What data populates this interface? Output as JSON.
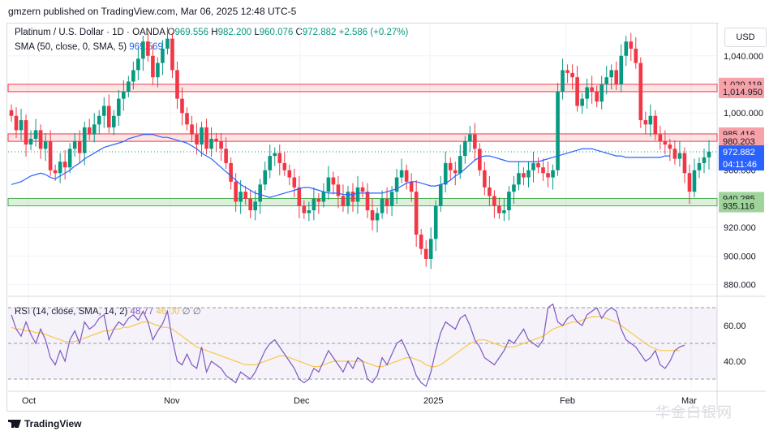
{
  "header": {
    "published": "gmzern published on TradingView.com, Mar 06, 2025 12:48 UTC-5"
  },
  "legend": {
    "symbol": "Platinum / U.S. Dollar · 1D · OANDA",
    "open_label": "O",
    "open": "969.556",
    "high_label": "H",
    "high": "982.200",
    "low_label": "L",
    "low": "960.076",
    "close_label": "C",
    "close": "972.882",
    "change": "+2.586 (+0.27%)",
    "sma_label": "SMA (50, close, 0, SMA, 5)",
    "sma_value": "969.569",
    "rsi_label": "RSI (14, close, SMA, 14, 2)",
    "rsi_value": "48.77",
    "rsi_sma_value": "46.00",
    "rsi_extra1": "∅",
    "rsi_extra2": "∅"
  },
  "currency_button": "USD",
  "footer": {
    "brand": "TradingView",
    "watermark": "华金白银网"
  },
  "colors": {
    "up": "#089981",
    "down": "#f23645",
    "sma": "#2962ff",
    "rsi": "#7e57c2",
    "rsi_sma": "#f7c948",
    "resistance_zone": "#f8b4b8",
    "support_zone": "#9fd49a"
  },
  "chart_data": [
    {
      "type": "candlestick",
      "title": "Platinum / U.S. Dollar · 1D · OANDA",
      "x_tick_labels": [
        "Oct",
        "Nov",
        "Dec",
        "2025",
        "Feb",
        "Mar"
      ],
      "y_tick_labels": [
        "880.000",
        "900.000",
        "920.000",
        "960.000",
        "1,000.000",
        "1,040.000"
      ],
      "ylim": [
        873,
        1062
      ],
      "grid": true,
      "price_tags": [
        {
          "value": 1020.119,
          "label": "1,020.119",
          "color": "#f7a1a8"
        },
        {
          "value": 1014.95,
          "label": "1,014.950",
          "color": "#f7a1a8"
        },
        {
          "value": 985.416,
          "label": "985.416",
          "color": "#f7a1a8"
        },
        {
          "value": 980.203,
          "label": "980.203",
          "color": "#f7a1a8"
        },
        {
          "value": 972.882,
          "label": "972.882",
          "color": "#2962ff"
        },
        {
          "value": 940.285,
          "label": "940.285",
          "color": "#9fd49a"
        },
        {
          "value": 935.116,
          "label": "935.116",
          "color": "#9fd49a"
        }
      ],
      "countdown_label": "04:11:46",
      "zones": [
        {
          "from": 1014.95,
          "to": 1020.119,
          "color": "#f8b4b8"
        },
        {
          "from": 980.203,
          "to": 985.416,
          "color": "#f8b4b8"
        },
        {
          "from": 935.116,
          "to": 940.285,
          "color": "#9fd49a"
        }
      ],
      "closes": [
        998,
        988,
        995,
        978,
        982,
        988,
        975,
        980,
        960,
        958,
        966,
        962,
        975,
        980,
        972,
        990,
        985,
        992,
        998,
        1005,
        990,
        998,
        1010,
        1015,
        1022,
        1030,
        1038,
        1050,
        1040,
        1025,
        1035,
        1045,
        1052,
        1030,
        1010,
        1000,
        992,
        985,
        978,
        990,
        975,
        982,
        980,
        975,
        965,
        952,
        938,
        945,
        940,
        932,
        938,
        950,
        960,
        970,
        972,
        965,
        960,
        955,
        948,
        935,
        930,
        932,
        940,
        938,
        945,
        955,
        950,
        942,
        935,
        945,
        938,
        948,
        945,
        932,
        925,
        930,
        940,
        935,
        945,
        955,
        960,
        952,
        945,
        915,
        905,
        898,
        912,
        935,
        950,
        965,
        960,
        958,
        970,
        980,
        985,
        975,
        960,
        948,
        942,
        935,
        930,
        932,
        945,
        950,
        958,
        955,
        960,
        965,
        962,
        958,
        955,
        960,
        1015,
        1030,
        1028,
        1025,
        1005,
        1010,
        1018,
        1015,
        1008,
        1020,
        1025,
        1030,
        1020,
        1040,
        1050,
        1045,
        1035,
        995,
        992,
        998,
        985,
        980,
        978,
        975,
        968,
        972,
        958,
        945,
        960,
        965,
        969,
        973
      ],
      "sma": [
        950,
        951,
        952,
        954,
        956,
        957,
        958,
        957,
        955,
        954,
        956,
        958,
        960,
        963,
        965,
        968,
        970,
        972,
        974,
        976,
        977,
        978,
        979,
        980,
        982,
        983,
        984,
        985,
        985,
        985,
        984,
        983,
        983,
        982,
        981,
        980,
        979,
        977,
        975,
        972,
        970,
        968,
        965,
        962,
        959,
        956,
        953,
        950,
        948,
        946,
        944,
        943,
        942,
        941,
        942,
        943,
        944,
        945,
        946,
        947,
        948,
        948,
        947,
        946,
        945,
        944,
        944,
        944,
        943,
        943,
        943,
        944,
        944,
        944,
        944,
        944,
        944,
        945,
        946,
        947,
        949,
        951,
        952,
        952,
        951,
        950,
        949,
        949,
        950,
        951,
        953,
        956,
        958,
        961,
        964,
        967,
        969,
        970,
        970,
        969,
        968,
        967,
        966,
        966,
        966,
        966,
        966,
        966,
        966,
        967,
        968,
        969,
        970,
        971,
        972,
        973,
        974,
        975,
        975,
        975,
        974,
        973,
        972,
        971,
        970,
        970,
        969,
        969,
        969,
        969,
        969,
        969,
        969,
        969,
        970,
        970
      ],
      "rsi": [
        66,
        58,
        54,
        62,
        55,
        50,
        58,
        52,
        42,
        38,
        46,
        40,
        52,
        57,
        50,
        62,
        58,
        60,
        64,
        66,
        52,
        58,
        62,
        60,
        64,
        66,
        63,
        68,
        62,
        52,
        57,
        61,
        68,
        52,
        40,
        38,
        44,
        38,
        36,
        48,
        34,
        40,
        38,
        36,
        32,
        30,
        28,
        34,
        32,
        30,
        34,
        40,
        46,
        50,
        52,
        48,
        44,
        40,
        36,
        30,
        28,
        30,
        36,
        34,
        40,
        46,
        42,
        38,
        34,
        40,
        36,
        42,
        40,
        30,
        28,
        32,
        42,
        38,
        44,
        50,
        52,
        46,
        40,
        32,
        28,
        26,
        34,
        46,
        56,
        62,
        60,
        58,
        64,
        66,
        60,
        52,
        48,
        42,
        40,
        38,
        42,
        46,
        52,
        50,
        54,
        58,
        52,
        50,
        48,
        52,
        70,
        72,
        62,
        60,
        64,
        66,
        62,
        60,
        66,
        68,
        70,
        64,
        68,
        70,
        68,
        58,
        52,
        50,
        48,
        44,
        40,
        42,
        46,
        38,
        36,
        40,
        46,
        48,
        49
      ],
      "rsi_sma": [
        59,
        58,
        58,
        57,
        57,
        56,
        56,
        55,
        54,
        53,
        52,
        51,
        51,
        51,
        52,
        53,
        54,
        55,
        56,
        57,
        57,
        58,
        58,
        59,
        59,
        60,
        61,
        62,
        62,
        61,
        60,
        59,
        59,
        58,
        56,
        54,
        52,
        50,
        48,
        47,
        46,
        45,
        44,
        43,
        42,
        41,
        40,
        39,
        38,
        38,
        38,
        39,
        40,
        41,
        42,
        43,
        43,
        42,
        41,
        40,
        39,
        38,
        37,
        37,
        38,
        39,
        40,
        40,
        40,
        40,
        40,
        40,
        40,
        39,
        38,
        37,
        37,
        38,
        39,
        40,
        41,
        42,
        42,
        41,
        40,
        38,
        37,
        37,
        38,
        40,
        42,
        44,
        46,
        48,
        50,
        51,
        52,
        52,
        51,
        50,
        49,
        48,
        48,
        48,
        49,
        50,
        51,
        52,
        53,
        54,
        56,
        58,
        59,
        60,
        61,
        62,
        62,
        63,
        64,
        65,
        65,
        65,
        64,
        63,
        62,
        60,
        58,
        56,
        54,
        52,
        50,
        48,
        47,
        46,
        46,
        46,
        46,
        46
      ],
      "rsi_ylim": [
        25,
        75
      ],
      "rsi_levels": [
        30,
        50,
        70
      ],
      "rsi_y_tick_labels": [
        "40.00",
        "60.00"
      ]
    }
  ]
}
